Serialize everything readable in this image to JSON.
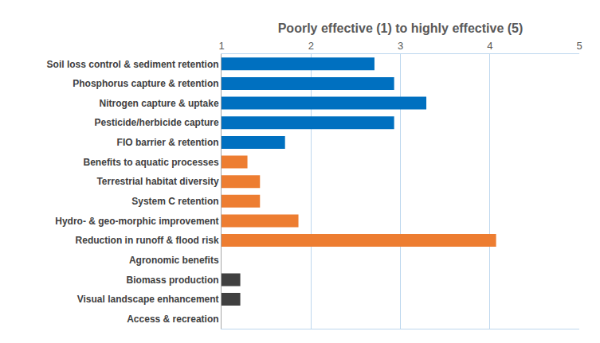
{
  "chart_data": {
    "type": "bar",
    "orientation": "horizontal",
    "title": "Poorly effective (1) to highly effective (5)",
    "categories": [
      "Soil loss control & sediment retention",
      "Phosphorus capture & retention",
      "Nitrogen capture & uptake",
      "Pesticide/herbicide capture",
      "FIO barrier & retention",
      "Benefits to aquatic processes",
      "Terrestrial habitat diversity",
      "System C retention",
      "Hydro- & geo-morphic improvement",
      "Reduction in runoff & flood risk",
      "Agronomic benefits",
      "Biomass production",
      "Visual landscape enhancement",
      "Access & recreation"
    ],
    "values": [
      2.71,
      2.93,
      3.29,
      2.93,
      1.71,
      1.29,
      1.43,
      1.43,
      1.86,
      4.07,
      1,
      1.21,
      1.21,
      1
    ],
    "colors": [
      "#0070c0",
      "#0070c0",
      "#0070c0",
      "#0070c0",
      "#0070c0",
      "#ed7d31",
      "#ed7d31",
      "#ed7d31",
      "#ed7d31",
      "#ed7d31",
      "#404040",
      "#404040",
      "#404040",
      "#404040"
    ],
    "xlim": [
      1,
      5
    ],
    "xticks": [
      1,
      2,
      3,
      4,
      5
    ],
    "grid": true
  }
}
